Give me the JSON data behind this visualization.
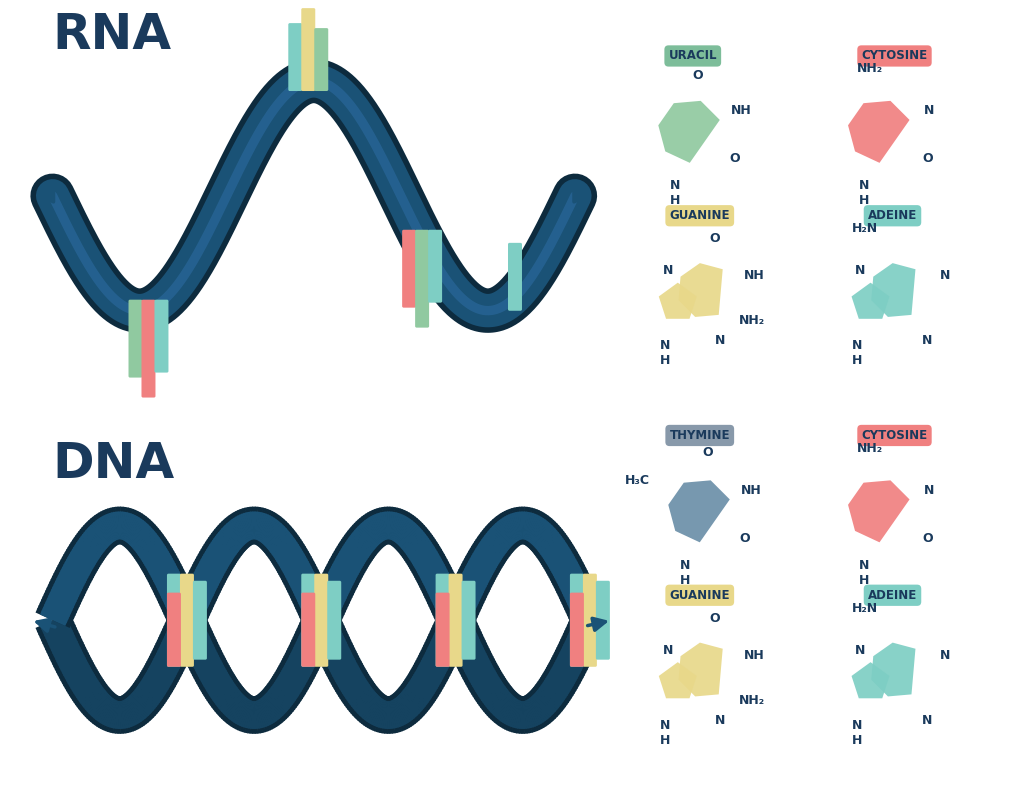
{
  "background_color": "#ffffff",
  "rna_label": "RNA",
  "dna_label": "DNA",
  "label_color": "#1a3a5c",
  "label_fontsize": 36,
  "label_fontweight": "bold",
  "helix_color": "#1a5276",
  "helix_shadow": "#0d2b3e",
  "helix_highlight": "#2471a3",
  "colors": {
    "red": "#f08080",
    "green": "#90c9a0",
    "teal": "#7ecec4",
    "yellow": "#e8d88a"
  },
  "uracil_label": "URACIL",
  "cytosine_label": "CYTOSINE",
  "guanine_label": "GUANINE",
  "adeine_label": "ADEINE",
  "thymine_label": "THYMINE",
  "label_bg_green": "#7dbd9a",
  "label_bg_red": "#f08080",
  "label_bg_yellow": "#e8d88a",
  "label_bg_teal": "#7ecec4",
  "label_bg_slate": "#8899aa",
  "text_color": "#1a3a5c",
  "mol_fontsize": 9
}
